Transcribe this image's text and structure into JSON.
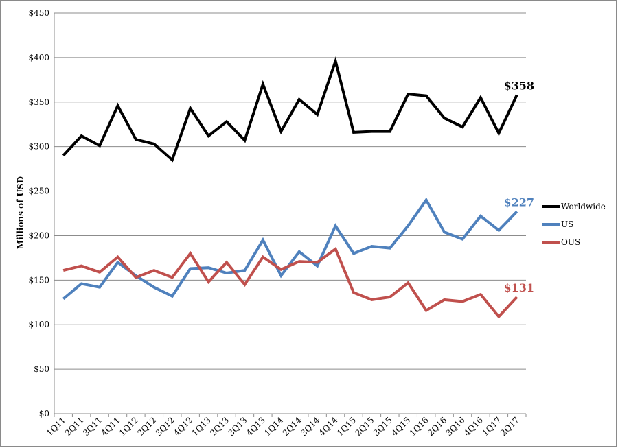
{
  "chart_data": {
    "type": "line",
    "title": "",
    "xlabel": "",
    "ylabel": "Millions of USD",
    "ylim": [
      0,
      450
    ],
    "ytick_step": 50,
    "ytick_labels": [
      "$0",
      "$50",
      "$100",
      "$150",
      "$200",
      "$250",
      "$300",
      "$350",
      "$400",
      "$450"
    ],
    "grid": true,
    "legend_position": "right",
    "categories": [
      "1Q11",
      "2Q11",
      "3Q11",
      "4Q11",
      "1Q12",
      "2Q12",
      "3Q12",
      "4Q12",
      "1Q13",
      "2Q13",
      "3Q13",
      "4Q13",
      "1Q14",
      "2Q14",
      "3Q14",
      "4Q14",
      "1Q15",
      "2Q15",
      "3Q15",
      "4Q15",
      "1Q16",
      "2Q16",
      "3Q16",
      "4Q16",
      "1Q17",
      "2Q17"
    ],
    "series": [
      {
        "name": "Worldwide",
        "color": "#000000",
        "values": [
          290,
          312,
          301,
          346,
          308,
          303,
          285,
          343,
          312,
          328,
          307,
          370,
          317,
          353,
          336,
          396,
          316,
          317,
          317,
          359,
          357,
          332,
          322,
          355,
          315,
          358
        ],
        "end_label": "$358"
      },
      {
        "name": "US",
        "color": "#4f81bd",
        "values": [
          129,
          146,
          142,
          170,
          155,
          142,
          132,
          163,
          164,
          158,
          161,
          195,
          155,
          182,
          166,
          211,
          180,
          188,
          186,
          211,
          240,
          204,
          196,
          222,
          206,
          227
        ],
        "end_label": "$227"
      },
      {
        "name": "OUS",
        "color": "#c0504d",
        "values": [
          161,
          166,
          159,
          176,
          153,
          161,
          153,
          180,
          148,
          170,
          145,
          176,
          162,
          171,
          170,
          185,
          136,
          128,
          131,
          147,
          116,
          128,
          126,
          134,
          109,
          131
        ],
        "end_label": "$131"
      }
    ]
  }
}
